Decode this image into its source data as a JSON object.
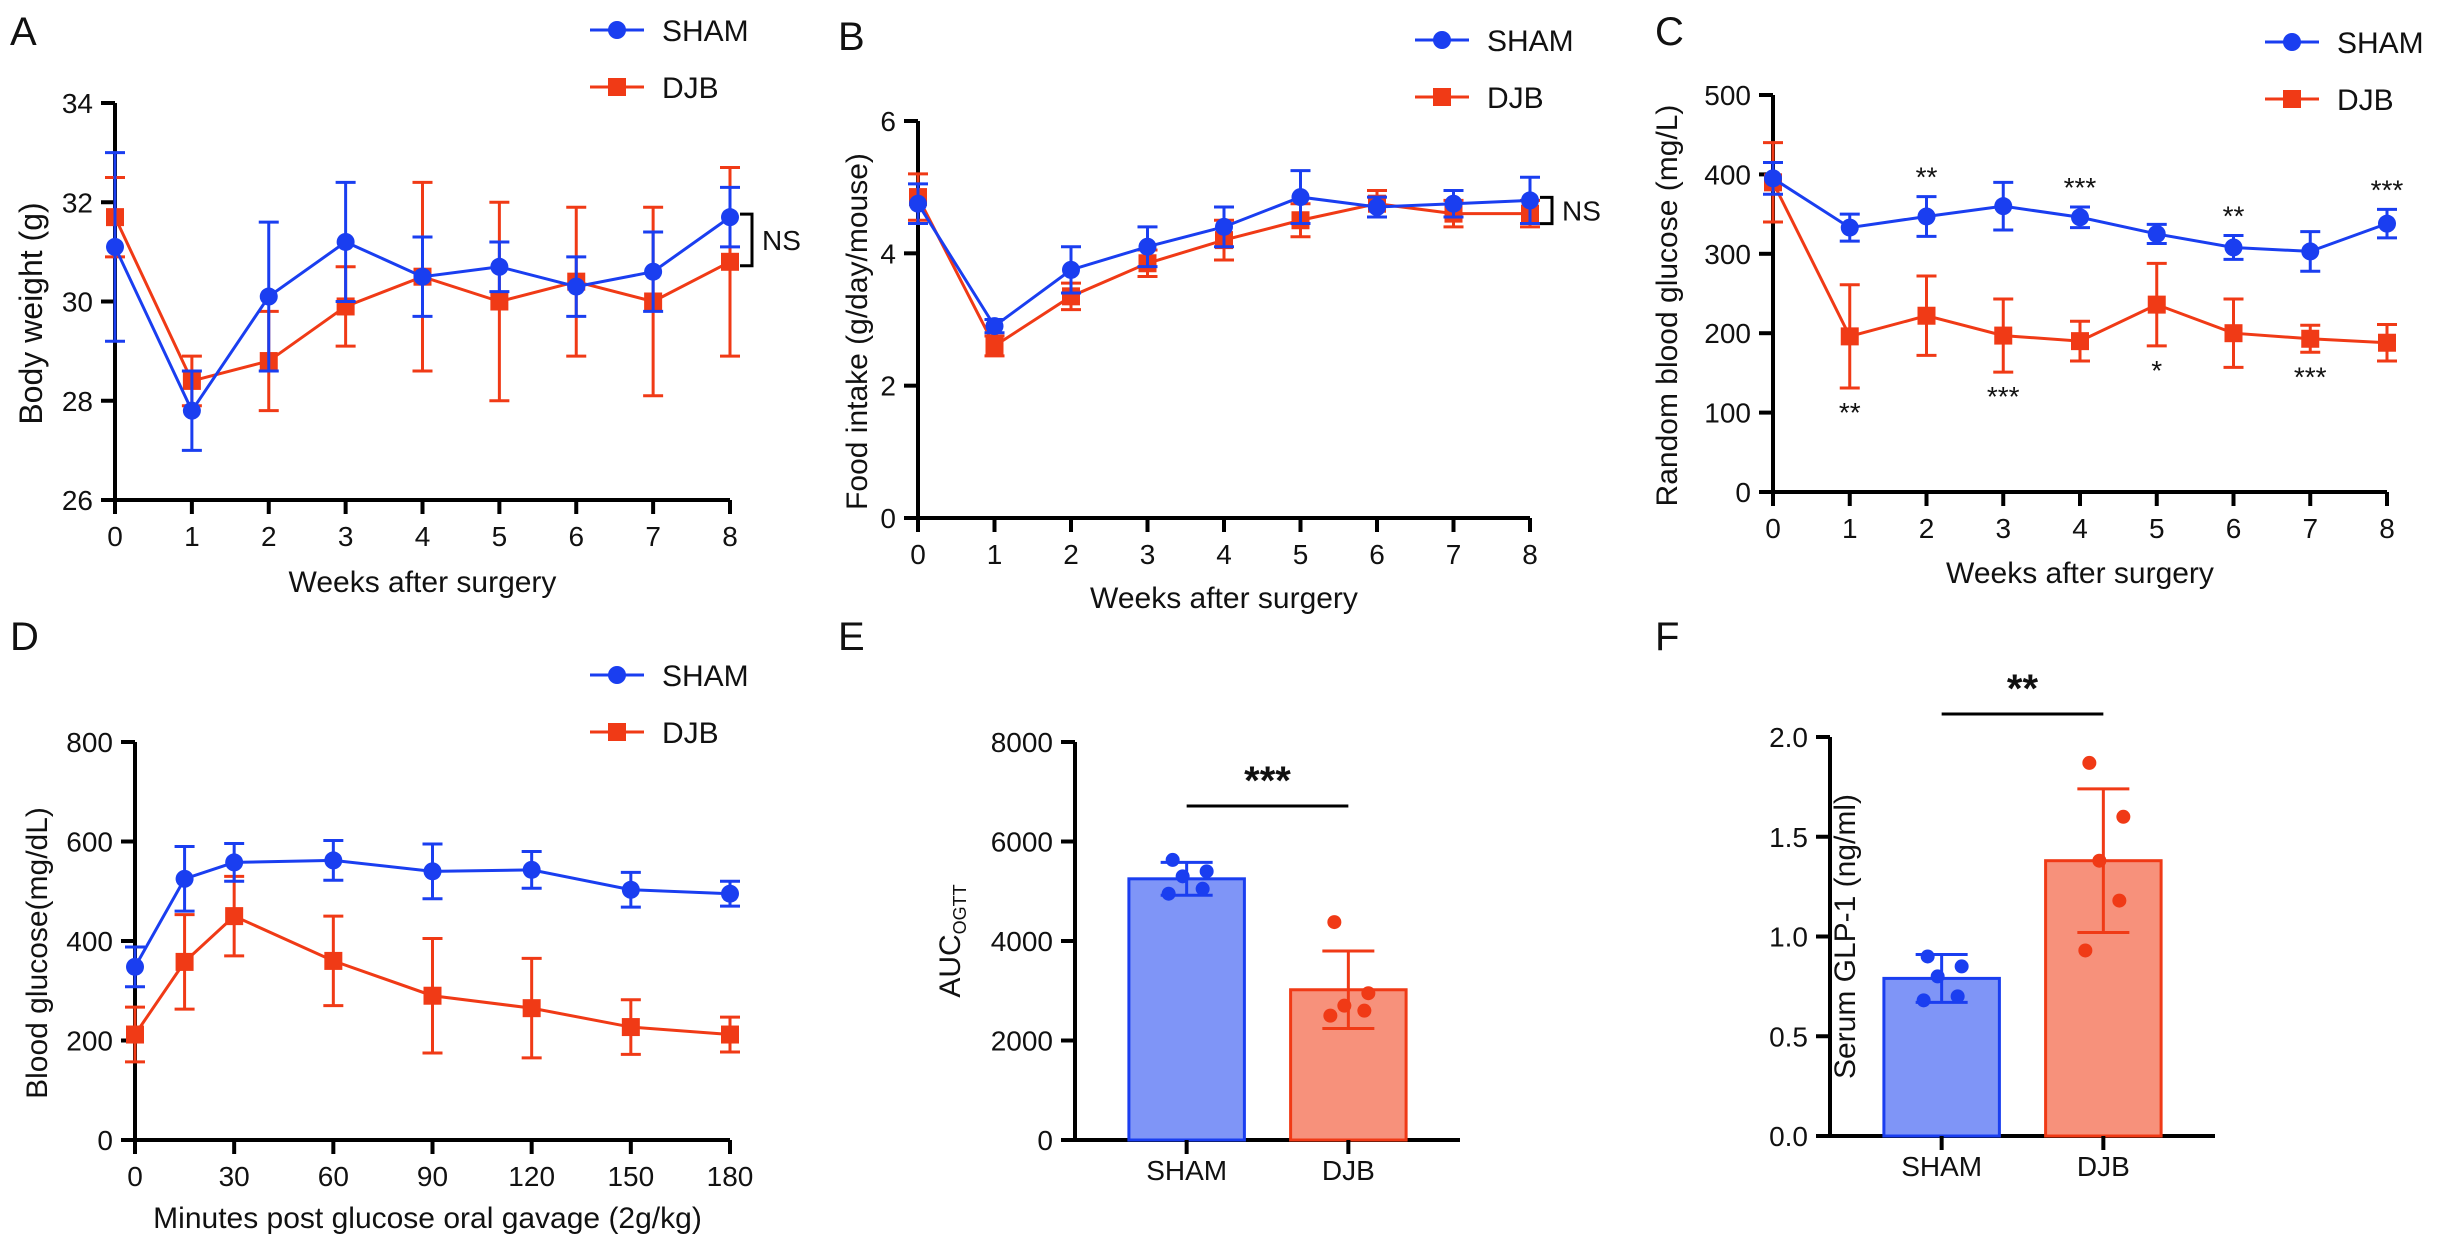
{
  "colors": {
    "sham": "#1a3ef0",
    "djb": "#f03a16",
    "sham_bar": "#7f95f7",
    "djb_bar": "#f7917b",
    "axis": "#000000"
  },
  "chart_data": [
    {
      "type": "line",
      "panel_label": "A",
      "xlabel": "Weeks after surgery",
      "ylabel": "Body weight (g)",
      "x": [
        0,
        1,
        2,
        3,
        4,
        5,
        6,
        7,
        8
      ],
      "xticks": [
        "0",
        "1",
        "2",
        "3",
        "4",
        "5",
        "6",
        "7",
        "8"
      ],
      "ylim": [
        26,
        34
      ],
      "yticks": [
        "26",
        "28",
        "30",
        "32",
        "34"
      ],
      "legend": [
        "SHAM",
        "DJB"
      ],
      "series": [
        {
          "name": "SHAM",
          "values": [
            31.1,
            27.8,
            30.1,
            31.2,
            30.5,
            30.7,
            30.3,
            30.6,
            31.7
          ],
          "err": [
            1.9,
            0.8,
            1.5,
            1.2,
            0.8,
            0.5,
            0.6,
            0.8,
            0.6
          ]
        },
        {
          "name": "DJB",
          "values": [
            31.7,
            28.4,
            28.8,
            29.9,
            30.5,
            30.0,
            30.4,
            30.0,
            30.8
          ],
          "err": [
            0.8,
            0.5,
            1.0,
            0.8,
            1.9,
            2.0,
            1.5,
            1.9,
            1.9
          ]
        }
      ],
      "bracket": {
        "label": "NS"
      }
    },
    {
      "type": "line",
      "panel_label": "B",
      "xlabel": "Weeks after surgery",
      "ylabel": "Food intake (g/day/mouse)",
      "x": [
        0,
        1,
        2,
        3,
        4,
        5,
        6,
        7,
        8
      ],
      "xticks": [
        "0",
        "1",
        "2",
        "3",
        "4",
        "5",
        "6",
        "7",
        "8"
      ],
      "ylim": [
        0,
        6
      ],
      "yticks": [
        "0",
        "2",
        "4",
        "6"
      ],
      "legend": [
        "SHAM",
        "DJB"
      ],
      "series": [
        {
          "name": "SHAM",
          "values": [
            4.75,
            2.9,
            3.75,
            4.1,
            4.4,
            4.85,
            4.7,
            4.75,
            4.8
          ],
          "err": [
            0.3,
            0.1,
            0.35,
            0.3,
            0.3,
            0.4,
            0.15,
            0.2,
            0.35
          ]
        },
        {
          "name": "DJB",
          "values": [
            4.85,
            2.6,
            3.35,
            3.85,
            4.2,
            4.5,
            4.75,
            4.6,
            4.6
          ],
          "err": [
            0.35,
            0.15,
            0.2,
            0.2,
            0.3,
            0.25,
            0.2,
            0.2,
            0.2
          ]
        }
      ],
      "bracket": {
        "label": "NS"
      }
    },
    {
      "type": "line",
      "panel_label": "C",
      "xlabel": "Weeks after surgery",
      "ylabel": "Random blood glucose (mg/L)",
      "x": [
        0,
        1,
        2,
        3,
        4,
        5,
        6,
        7,
        8
      ],
      "xticks": [
        "0",
        "1",
        "2",
        "3",
        "4",
        "5",
        "6",
        "7",
        "8"
      ],
      "ylim": [
        0,
        500
      ],
      "yticks": [
        "0",
        "100",
        "200",
        "300",
        "400",
        "500"
      ],
      "legend": [
        "SHAM",
        "DJB"
      ],
      "series": [
        {
          "name": "SHAM",
          "values": [
            395,
            333,
            347,
            360,
            346,
            325,
            308,
            303,
            338
          ],
          "err": [
            20,
            17,
            25,
            30,
            13,
            12,
            15,
            25,
            18
          ]
        },
        {
          "name": "DJB",
          "values": [
            390,
            196,
            222,
            197,
            190,
            236,
            200,
            193,
            188
          ],
          "err": [
            50,
            65,
            50,
            46,
            25,
            52,
            43,
            17,
            23
          ]
        }
      ],
      "annotations": [
        {
          "x": 1,
          "text": "**",
          "pos": "below"
        },
        {
          "x": 2,
          "text": "**",
          "pos": "above"
        },
        {
          "x": 3,
          "text": "***",
          "pos": "below"
        },
        {
          "x": 4,
          "text": "***",
          "pos": "above"
        },
        {
          "x": 5,
          "text": "*",
          "pos": "below"
        },
        {
          "x": 6,
          "text": "**",
          "pos": "above"
        },
        {
          "x": 7,
          "text": "***",
          "pos": "below"
        },
        {
          "x": 8,
          "text": "***",
          "pos": "above"
        }
      ]
    },
    {
      "type": "line",
      "panel_label": "D",
      "xlabel": "Minutes post glucose oral gavage (2g/kg)",
      "ylabel": "Blood glucose(mg/dL)",
      "x": [
        0,
        15,
        30,
        60,
        90,
        120,
        150,
        180
      ],
      "xticks": [
        "0",
        "30",
        "60",
        "90",
        "120",
        "150",
        "180"
      ],
      "xtick_values": [
        0,
        30,
        60,
        90,
        120,
        150,
        180
      ],
      "xlim": [
        0,
        180
      ],
      "ylim": [
        0,
        800
      ],
      "yticks": [
        "0",
        "200",
        "400",
        "600",
        "800"
      ],
      "legend": [
        "SHAM",
        "DJB"
      ],
      "series": [
        {
          "name": "SHAM",
          "values": [
            348,
            525,
            558,
            562,
            540,
            543,
            503,
            495
          ],
          "err": [
            40,
            65,
            38,
            40,
            55,
            37,
            35,
            25
          ]
        },
        {
          "name": "DJB",
          "values": [
            212,
            358,
            450,
            360,
            290,
            265,
            227,
            212
          ],
          "err": [
            55,
            95,
            80,
            90,
            115,
            100,
            55,
            35
          ]
        }
      ]
    },
    {
      "type": "bar",
      "panel_label": "E",
      "categories": [
        "SHAM",
        "DJB"
      ],
      "ylabel_main": "AUC",
      "ylabel_sub": "OGTT",
      "ylim": [
        0,
        8000
      ],
      "yticks": [
        "0",
        "2000",
        "4000",
        "6000",
        "8000"
      ],
      "values": [
        5250,
        3020
      ],
      "err": [
        330,
        780
      ],
      "points": [
        [
          4950,
          5050,
          5300,
          5400,
          5630
        ],
        [
          2500,
          2600,
          2700,
          2950,
          4380
        ]
      ],
      "significance": "***"
    },
    {
      "type": "bar",
      "panel_label": "F",
      "categories": [
        "SHAM",
        "DJB"
      ],
      "ylabel": "Serum GLP-1 (ng/ml)",
      "ylim": [
        0,
        2.0
      ],
      "yticks": [
        "0.0",
        "0.5",
        "1.0",
        "1.5",
        "2.0"
      ],
      "values": [
        0.79,
        1.38
      ],
      "err": [
        0.12,
        0.36
      ],
      "points": [
        [
          0.68,
          0.7,
          0.8,
          0.85,
          0.9
        ],
        [
          0.93,
          1.18,
          1.38,
          1.6,
          1.87
        ]
      ],
      "significance": "**"
    }
  ]
}
